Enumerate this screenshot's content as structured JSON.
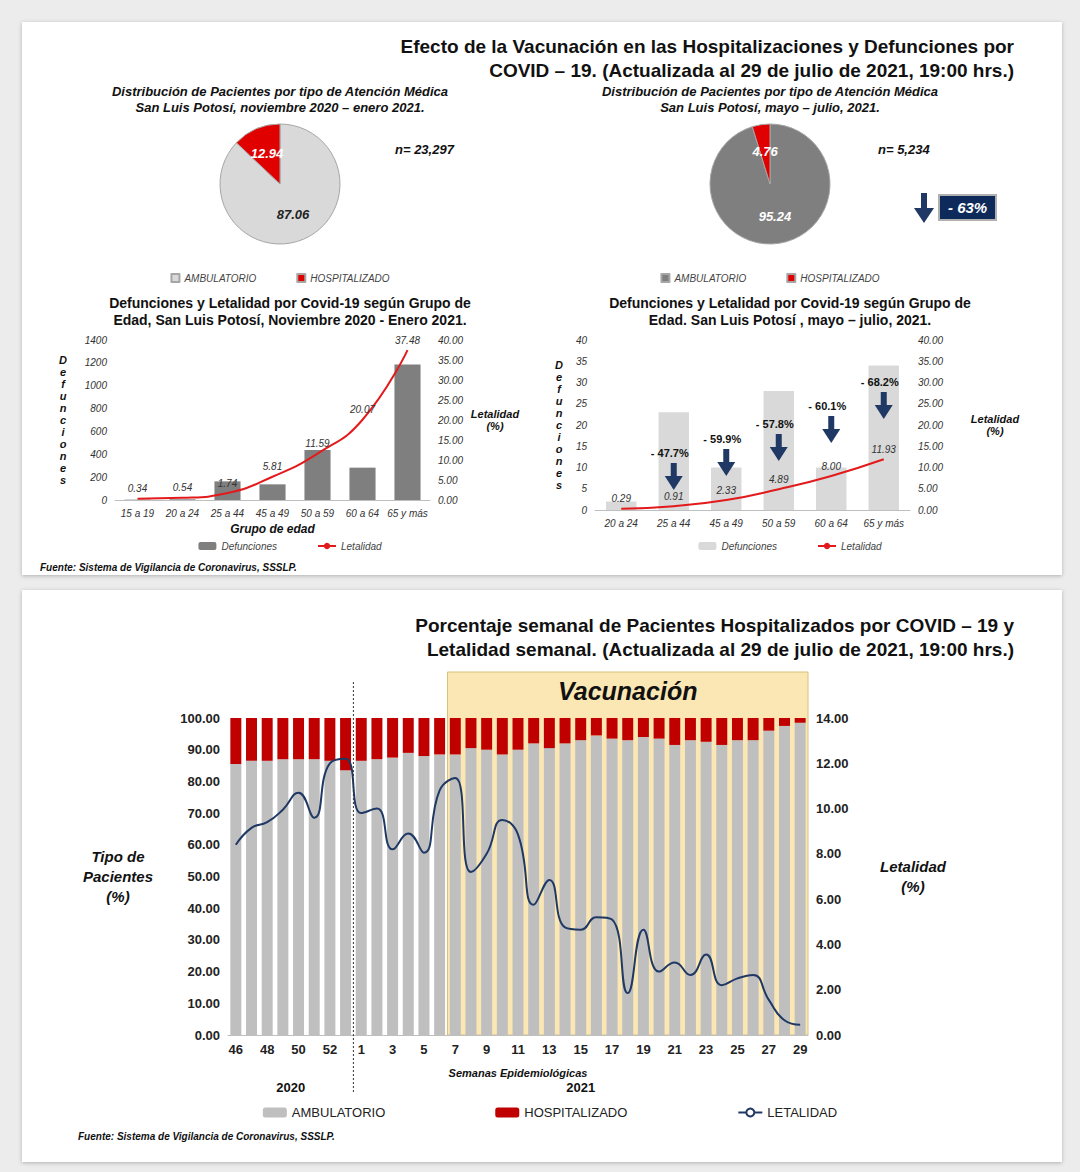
{
  "panels": [
    {
      "title": "Efecto de la Vacunación en las Hospitalizaciones y Defunciones por\nCOVID – 19. (Actualizada al 29 de julio de 2021, 19:00 hrs.)",
      "source": "Fuente: Sistema de Vigilancia de Coronavirus, SSSLP."
    },
    {
      "title": "Porcentaje semanal de Pacientes Hospitalizados por COVID – 19 y\nLetalidad semanal. (Actualizada al 29 de julio de 2021, 19:00 hrs.)",
      "source": "Fuente: Sistema de Vigilancia de Coronavirus, SSSLP."
    }
  ],
  "chart_data": [
    {
      "type": "pie",
      "title": "Distribución de Pacientes por tipo de Atención Médica\nSan Luis Potosí, noviembre 2020 – enero 2021.",
      "categories": [
        "AMBULATORIO",
        "HOSPITALIZADO"
      ],
      "values": [
        87.06,
        12.94
      ],
      "colors": [
        "#d9d9d9",
        "#e00000"
      ],
      "data_labels": true,
      "legend": "bottom",
      "annotations": [
        "n= 23,297"
      ]
    },
    {
      "type": "pie",
      "title": "Distribución de Pacientes por tipo de Atención Médica\nSan Luis Potosí, mayo – julio, 2021.",
      "categories": [
        "AMBULATORIO",
        "HOSPITALIZADO"
      ],
      "values": [
        95.24,
        4.76
      ],
      "colors": [
        "#7f7f7f",
        "#e00000"
      ],
      "data_labels": true,
      "legend": "bottom",
      "annotations": [
        "n= 5,234",
        "- 63%"
      ]
    },
    {
      "type": "bar",
      "title": "Defunciones y Letalidad por Covid-19 según Grupo de\nEdad, San Luis Potosí, Noviembre 2020 - Enero 2021.",
      "categories": [
        "15 a 19",
        "20 a 24",
        "25 a 44",
        "45 a 49",
        "50 a 59",
        "60 a 64",
        "65 y más"
      ],
      "x_label": "Grupo de edad",
      "y_label": "Defunciones",
      "y2_label": "Letalidad\n(%)",
      "series": [
        {
          "name": "Defunciones",
          "type": "bar",
          "color": "#7f7f7f",
          "values": [
            3,
            6,
            163,
            137,
            438,
            283,
            1185
          ]
        },
        {
          "name": "Letalidad",
          "type": "line",
          "color": "#e31a1c",
          "axis": "y2",
          "data_labels": true,
          "values": [
            0.34,
            0.54,
            1.74,
            5.81,
            11.59,
            20.07,
            37.48
          ]
        }
      ],
      "ylim": [
        0,
        1400
      ],
      "yticks": [
        0,
        200,
        400,
        600,
        800,
        1000,
        1200,
        1400
      ],
      "y2lim": [
        0,
        40
      ],
      "y2ticks": [
        {
          "value": 0,
          "label": "0.00"
        },
        {
          "value": 5,
          "label": "5.00"
        },
        {
          "value": 10,
          "label": "10.00"
        },
        {
          "value": 15,
          "label": "15.00"
        },
        {
          "value": 20,
          "label": "20.00"
        },
        {
          "value": 25,
          "label": "25.00"
        },
        {
          "value": 30,
          "label": "30.00"
        },
        {
          "value": 35,
          "label": "35.00"
        },
        {
          "value": 40,
          "label": "40.00"
        }
      ],
      "grid": false,
      "legend": "bottom"
    },
    {
      "type": "bar",
      "title": "Defunciones y Letalidad por Covid-19 según Grupo de\nEdad. San Luis Potosí , mayo – julio, 2021.",
      "categories": [
        "20 a 24",
        "25 a 44",
        "45 a 49",
        "50 a 59",
        "60 a 64",
        "65 y más"
      ],
      "y_label": "Defunciones",
      "y2_label": "Letalidad\n(%)",
      "series": [
        {
          "name": "Defunciones",
          "type": "bar",
          "color": "#d9d9d9",
          "values": [
            2,
            23,
            10,
            28,
            10,
            34
          ]
        },
        {
          "name": "Letalidad",
          "type": "line",
          "color": "#e31a1c",
          "axis": "y2",
          "data_labels": true,
          "values": [
            0.29,
            0.91,
            2.33,
            4.89,
            8.0,
            11.93
          ],
          "value_labels": [
            "0.29",
            "0.91",
            "2.33",
            "4.89",
            "8.00",
            "11.93"
          ]
        }
      ],
      "ylim": [
        0,
        40
      ],
      "yticks": [
        0,
        5,
        10,
        15,
        20,
        25,
        30,
        35,
        40
      ],
      "y2lim": [
        0,
        40
      ],
      "y2ticks": [
        {
          "value": 0,
          "label": "0.00"
        },
        {
          "value": 5,
          "label": "5.00"
        },
        {
          "value": 10,
          "label": "10.00"
        },
        {
          "value": 15,
          "label": "15.00"
        },
        {
          "value": 20,
          "label": "20.00"
        },
        {
          "value": 25,
          "label": "25.00"
        },
        {
          "value": 30,
          "label": "30.00"
        },
        {
          "value": 35,
          "label": "35.00"
        },
        {
          "value": 40,
          "label": "40.00"
        }
      ],
      "annotations": [
        {
          "category": "25 a 44",
          "text": "- 47.7%"
        },
        {
          "category": "45 a 49",
          "text": "- 59.9%"
        },
        {
          "category": "50 a 59",
          "text": "- 57.8%"
        },
        {
          "category": "60 a 64",
          "text": "- 60.1%"
        },
        {
          "category": "65 y más",
          "text": "- 68.2%"
        }
      ],
      "grid": false,
      "legend": "bottom"
    },
    {
      "type": "bar",
      "stacked": true,
      "categories": [
        "46",
        null,
        "48",
        null,
        "50",
        null,
        "52",
        null,
        "1",
        null,
        "3",
        null,
        "5",
        null,
        "7",
        null,
        "9",
        null,
        "11",
        null,
        "13",
        null,
        "15",
        null,
        "17",
        null,
        "19",
        null,
        "21",
        null,
        "23",
        null,
        "25",
        null,
        "27",
        null,
        "29"
      ],
      "x_label": "Semanas Epidemiológicas",
      "y_label": "Tipo de\nPacientes\n(%)",
      "y2_label": "Letalidad\n(%)",
      "x_groups": [
        {
          "label": "2020",
          "count": 8
        },
        {
          "label": "2021",
          "count": 29
        }
      ],
      "band": {
        "label": "Vacunación",
        "from": "7",
        "to": "29"
      },
      "series": [
        {
          "name": "AMBULATORIO",
          "type": "bar",
          "color": "#bfbfbf",
          "values": [
            85.5,
            86.5,
            86.5,
            87,
            87,
            87,
            86.5,
            83.5,
            86.5,
            87,
            87.5,
            89,
            88,
            88.5,
            88.5,
            90.5,
            90,
            88.5,
            90,
            92,
            90.5,
            92,
            93,
            94.5,
            93.5,
            93,
            94,
            93.5,
            91.5,
            93,
            92.5,
            91.5,
            93,
            93,
            96,
            97.5,
            98.5
          ]
        },
        {
          "name": "HOSPITALIZADO",
          "type": "bar",
          "color": "#c00000",
          "values": [
            14.5,
            13.5,
            13.5,
            13,
            13,
            13,
            13.5,
            16.5,
            13.5,
            13,
            12.5,
            11,
            12,
            11.5,
            11.5,
            9.5,
            10,
            11.5,
            10,
            8,
            9.5,
            8,
            7,
            5.5,
            6.5,
            7,
            6,
            6.5,
            8.5,
            7,
            7.5,
            8.5,
            7,
            7,
            4,
            2.5,
            1.5
          ]
        },
        {
          "name": "LETALIDAD",
          "type": "line",
          "color": "#1f3864",
          "axis": "y2",
          "values": [
            8.4,
            9.15,
            9.4,
            9.95,
            10.7,
            9.6,
            12.0,
            12.2,
            9.8,
            10.0,
            8.2,
            8.9,
            8.05,
            10.8,
            11.35,
            7.2,
            8.0,
            9.5,
            8.85,
            5.75,
            6.85,
            4.75,
            4.65,
            5.2,
            5.1,
            1.85,
            4.65,
            2.8,
            3.2,
            2.65,
            3.55,
            2.2,
            2.5,
            2.65,
            1.55,
            0.65,
            0.45
          ]
        }
      ],
      "ylim": [
        0,
        100
      ],
      "yticks": [
        {
          "value": 0,
          "label": "0.00"
        },
        {
          "value": 10,
          "label": "10.00"
        },
        {
          "value": 20,
          "label": "20.00"
        },
        {
          "value": 30,
          "label": "30.00"
        },
        {
          "value": 40,
          "label": "40.00"
        },
        {
          "value": 50,
          "label": "50.00"
        },
        {
          "value": 60,
          "label": "60.00"
        },
        {
          "value": 70,
          "label": "70.00"
        },
        {
          "value": 80,
          "label": "80.00"
        },
        {
          "value": 90,
          "label": "90.00"
        },
        {
          "value": 100,
          "label": "100.00"
        }
      ],
      "y2lim": [
        0,
        14
      ],
      "y2ticks": [
        {
          "value": 0,
          "label": "0.00"
        },
        {
          "value": 2,
          "label": "2.00"
        },
        {
          "value": 4,
          "label": "4.00"
        },
        {
          "value": 6,
          "label": "6.00"
        },
        {
          "value": 8,
          "label": "8.00"
        },
        {
          "value": 10,
          "label": "10.00"
        },
        {
          "value": 12,
          "label": "12.00"
        },
        {
          "value": 14,
          "label": "14.00"
        }
      ],
      "grid": false,
      "legend": "bottom"
    }
  ]
}
